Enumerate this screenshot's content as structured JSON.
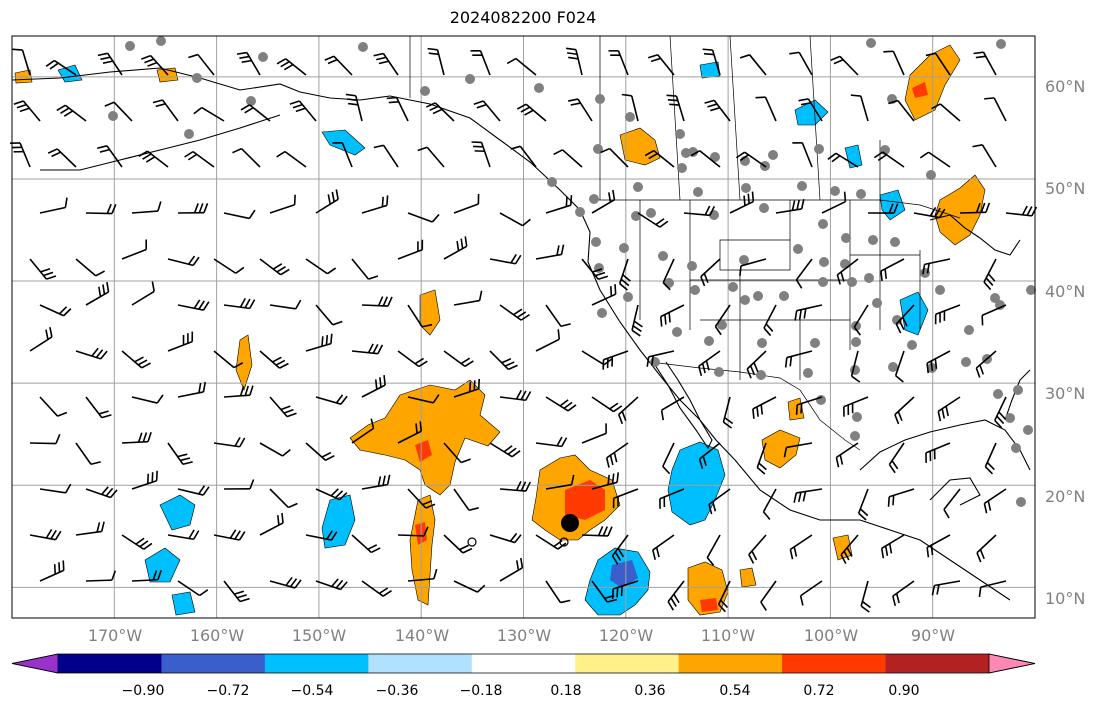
{
  "title": "2024082200 F024",
  "lat_labels": [
    "60°N",
    "50°N",
    "40°N",
    "30°N",
    "20°N",
    "10°N"
  ],
  "lon_labels": [
    "170°W",
    "160°W",
    "150°W",
    "140°W",
    "130°W",
    "120°W",
    "110°W",
    "100°W",
    "90°W"
  ],
  "colorbar": {
    "ticks": [
      "−0.90",
      "−0.72",
      "−0.54",
      "−0.36",
      "−0.18",
      "0.18",
      "0.36",
      "0.54",
      "0.72",
      "0.90"
    ],
    "colors": [
      "#9932cc",
      "#00008b",
      "#3a5fcd",
      "#00bfff",
      "#b0e2ff",
      "#ffffff",
      "#fff08a",
      "#ffa500",
      "#ff3a00",
      "#b22222",
      "#ff88b4"
    ]
  },
  "map": {
    "projection": "Plate Carree",
    "lon_range": [
      -180,
      -80
    ],
    "lat_range": [
      7,
      64
    ],
    "grid_spacing_deg": 10,
    "land_color": "#ffffff",
    "ocean_color": "#ffffff",
    "gridline_color": "#a0a0a0",
    "coastline_color": "#000000",
    "station_dot_color": "#808080",
    "wind_barb_color": "#000000",
    "storm_marker": {
      "lat": 17.3,
      "lon": -125.5,
      "color": "#000000"
    }
  }
}
